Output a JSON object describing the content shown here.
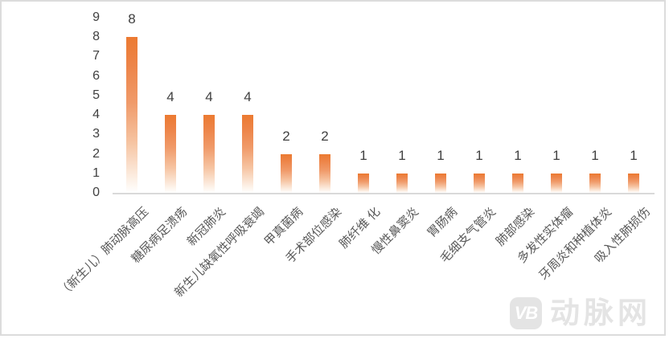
{
  "chart_data": {
    "type": "bar",
    "title": "",
    "xlabel": "",
    "ylabel": "",
    "categories": [
      "（新生儿）肺动脉高压",
      "糖尿病足溃疡",
      "新冠肺炎",
      "新生儿缺氧性呼吸衰竭",
      "甲真菌病",
      "手术部位感染",
      "肺纤维 化",
      "慢性鼻窦炎",
      "胃肠病",
      "毛细支气管炎",
      "肺部感染",
      "多发性实体瘤",
      "牙周炎和种植体炎",
      "吸入性肺损伤"
    ],
    "values": [
      8,
      4,
      4,
      4,
      2,
      2,
      1,
      1,
      1,
      1,
      1,
      1,
      1,
      1
    ],
    "ylim": [
      0,
      9
    ],
    "yticks": [
      0,
      1,
      2,
      3,
      4,
      5,
      6,
      7,
      8,
      9
    ],
    "grid": false,
    "legend": "none",
    "data_labels": true,
    "colors": {
      "bar_top": "#ED7D31",
      "bar_bottom": "#FFFFFF",
      "axis_line": "#D9D9D9",
      "tick_label": "#404040",
      "value_label": "#404040",
      "category_label": "#595959"
    }
  },
  "watermark": {
    "logo": "VB",
    "text": "动脉网",
    "color": "#E4E4E4"
  }
}
